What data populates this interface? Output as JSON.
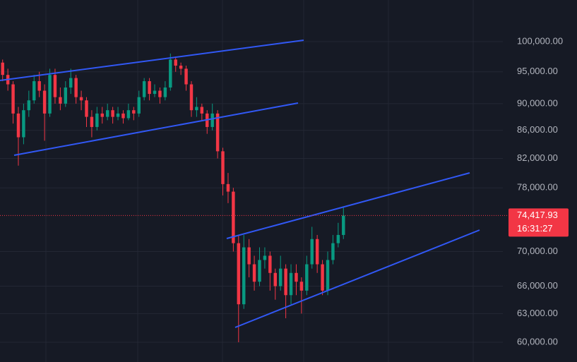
{
  "chart_data": {
    "type": "candlestick",
    "log_scale": true,
    "grid": true,
    "up_color": "#089981",
    "down_color": "#f23645",
    "categories": [
      null,
      null,
      null,
      null,
      null,
      null,
      null,
      null,
      null,
      null,
      null,
      null,
      null,
      null,
      null,
      null,
      null,
      null,
      null,
      null,
      null,
      null,
      null,
      null,
      null,
      null,
      null,
      null,
      null,
      null,
      null,
      null,
      null,
      null,
      null,
      null,
      null,
      null,
      null,
      null,
      null,
      null,
      null,
      null,
      null,
      null,
      null,
      null,
      null,
      null,
      null,
      null,
      null,
      null,
      null,
      null,
      null,
      null,
      null,
      null,
      null,
      null,
      null,
      null,
      null,
      null
    ],
    "open": [
      96500,
      94500,
      93000,
      88500,
      85000,
      89000,
      90500,
      93500,
      92000,
      88500,
      94500,
      91000,
      90000,
      92500,
      94000,
      91000,
      90500,
      88000,
      86500,
      88500,
      88000,
      89000,
      88000,
      88500,
      87800,
      89000,
      88500,
      91000,
      93500,
      91500,
      92000,
      91000,
      92500,
      97000,
      96000,
      95500,
      93000,
      89000,
      89500,
      88500,
      86500,
      88500,
      83000,
      78500,
      77500,
      71000,
      64000,
      70500,
      68500,
      66500,
      69000,
      69500,
      67500,
      66000,
      68000,
      65000,
      67500,
      66500,
      65500,
      68500,
      71500,
      68500,
      65500,
      69000,
      71000,
      72000
    ],
    "high": [
      97000,
      95500,
      93500,
      89500,
      90000,
      92000,
      94500,
      95000,
      93000,
      95500,
      95500,
      92500,
      93500,
      95500,
      94500,
      92000,
      91000,
      89000,
      89500,
      89500,
      90000,
      89500,
      89500,
      89000,
      90000,
      89500,
      92000,
      94000,
      94000,
      93000,
      92500,
      93500,
      98000,
      97500,
      96500,
      96000,
      93500,
      91000,
      90000,
      89000,
      90000,
      89000,
      83500,
      80000,
      78000,
      72000,
      72000,
      71500,
      69500,
      70500,
      70500,
      70000,
      68000,
      69500,
      68500,
      68500,
      68500,
      67000,
      69500,
      73000,
      72000,
      69000,
      70000,
      72000,
      73500,
      75500
    ],
    "low": [
      93500,
      92000,
      87000,
      81000,
      84000,
      88000,
      90000,
      91000,
      84500,
      88000,
      90000,
      89000,
      89500,
      91500,
      90000,
      89000,
      86500,
      85000,
      86000,
      87000,
      87500,
      87000,
      87500,
      87000,
      87500,
      87500,
      88000,
      90500,
      90500,
      91000,
      90000,
      90500,
      92000,
      95000,
      94500,
      92000,
      88000,
      88000,
      87500,
      85500,
      86000,
      82000,
      77000,
      76000,
      70000,
      60000,
      63500,
      67000,
      65500,
      66000,
      68000,
      65500,
      64500,
      65500,
      62500,
      64000,
      65000,
      63000,
      65000,
      68000,
      67500,
      65000,
      65000,
      68500,
      70500,
      71500
    ],
    "close": [
      94500,
      93000,
      88500,
      85000,
      89000,
      90500,
      93500,
      92000,
      88500,
      94500,
      91000,
      90000,
      92500,
      94000,
      91000,
      90500,
      88000,
      86500,
      88500,
      88000,
      89000,
      88000,
      88500,
      87800,
      89000,
      88500,
      91000,
      93500,
      91500,
      92000,
      91000,
      92500,
      97000,
      96000,
      95500,
      93000,
      89000,
      89500,
      88500,
      86500,
      88500,
      83000,
      78500,
      77500,
      71000,
      64000,
      70500,
      68500,
      66500,
      69000,
      69500,
      67500,
      66000,
      68000,
      65000,
      67500,
      66500,
      65500,
      68500,
      71500,
      68500,
      65500,
      69000,
      71000,
      72000,
      74417.93
    ],
    "ylim": [
      58020,
      107330
    ],
    "yticks": [
      {
        "value": 60000,
        "label": "60,000.00"
      },
      {
        "value": 63000,
        "label": "63,000.00"
      },
      {
        "value": 66000,
        "label": "66,000.00"
      },
      {
        "value": 70000,
        "label": "70,000.00"
      },
      {
        "value": 78000,
        "label": "78,000.00"
      },
      {
        "value": 82000,
        "label": "82,000.00"
      },
      {
        "value": 86000,
        "label": "86,000.00"
      },
      {
        "value": 90000,
        "label": "90,000.00"
      },
      {
        "value": 95000,
        "label": "95,000.00"
      },
      {
        "value": 100000,
        "label": "100,000.00"
      }
    ],
    "last_price": {
      "value": 74417.93,
      "label": "74,417.93"
    },
    "countdown": "16:31:27"
  }
}
